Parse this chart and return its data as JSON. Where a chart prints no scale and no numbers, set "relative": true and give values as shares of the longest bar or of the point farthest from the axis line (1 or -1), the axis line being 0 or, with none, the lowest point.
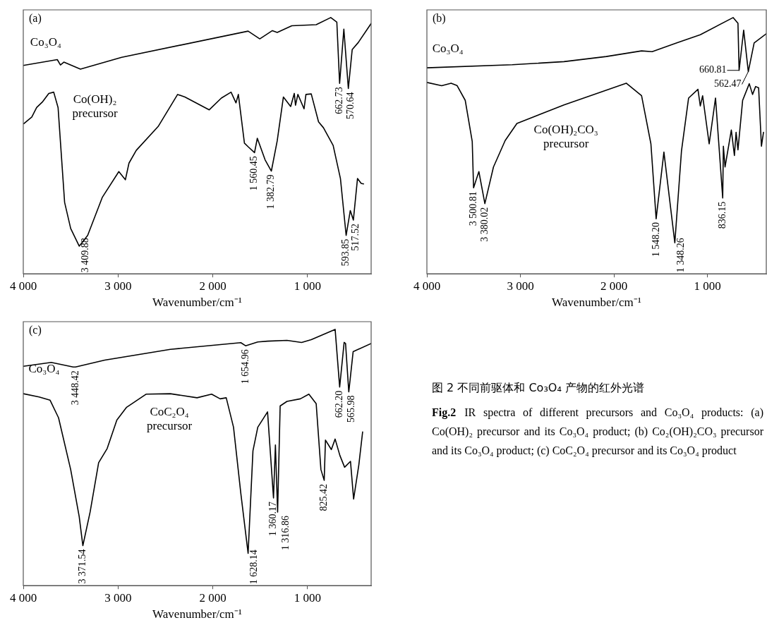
{
  "chart_data": [
    {
      "type": "line",
      "title": "(a)",
      "xlabel": "Wavenumber/cm⁻¹",
      "relative": true,
      "legend": false,
      "grid": false,
      "xlim": [
        4000,
        330
      ],
      "xticks": [
        {
          "value": 4000,
          "label": "4 000"
        },
        {
          "value": 3000,
          "label": "3 000"
        },
        {
          "value": 2000,
          "label": "2 000"
        },
        {
          "value": 1000,
          "label": "1 000"
        }
      ],
      "series": [
        {
          "name": "Co₃O₄",
          "color": "#000000",
          "x": [
            4000,
            3641,
            3608,
            3572,
            3397,
            2962,
            1628,
            1505,
            1372,
            1321,
            1167,
            910,
            756,
            692,
            662.73,
            618,
            570.64,
            530,
            465,
            330
          ],
          "values": [
            0.813,
            0.836,
            0.815,
            0.826,
            0.799,
            0.845,
            0.947,
            0.917,
            0.949,
            0.942,
            0.968,
            0.972,
            1,
            0.982,
            0.743,
            0.955,
            0.723,
            0.875,
            0.903,
            0.977
          ]
        },
        {
          "name": "Co(OH)₂ precursor",
          "color": "#000000",
          "x": [
            3995,
            3910,
            3859,
            3795,
            3731,
            3679,
            3633,
            3564,
            3500,
            3409.88,
            3321,
            3167,
            2992,
            2923,
            2885,
            2808,
            2577,
            2372,
            2295,
            2038,
            1910,
            1808,
            1756,
            1731,
            1667,
            1628,
            1560.45,
            1531,
            1449,
            1382.79,
            1321,
            1256,
            1179,
            1141,
            1128,
            1103,
            1038,
            1018,
            962,
            885,
            833,
            731,
            654,
            593.85,
            550,
            517.52,
            474,
            435,
            410
          ],
          "values": [
            0.586,
            0.612,
            0.649,
            0.672,
            0.704,
            0.709,
            0.649,
            0.279,
            0.177,
            0.108,
            0.15,
            0.298,
            0.399,
            0.367,
            0.432,
            0.482,
            0.575,
            0.7,
            0.69,
            0.64,
            0.686,
            0.709,
            0.667,
            0.7,
            0.51,
            0.496,
            0.473,
            0.529,
            0.445,
            0.401,
            0.519,
            0.69,
            0.653,
            0.704,
            0.658,
            0.7,
            0.644,
            0.7,
            0.702,
            0.593,
            0.57,
            0.501,
            0.372,
            0.15,
            0.247,
            0.21,
            0.372,
            0.353,
            0.351
          ]
        }
      ],
      "annotations": [
        {
          "text": "662.73",
          "x": 662.73,
          "y": 0.743
        },
        {
          "text": "570.64",
          "x": 570.64,
          "y": 0.723
        },
        {
          "text": "3 409.88",
          "x": 3409.88,
          "y": 0.108
        },
        {
          "text": "1 560.45",
          "x": 1560.45,
          "y": 0.473
        },
        {
          "text": "1 382.79",
          "x": 1382.79,
          "y": 0.401
        },
        {
          "text": "593.85",
          "x": 593.85,
          "y": 0.15
        },
        {
          "text": "517.52",
          "x": 517.52,
          "y": 0.21
        }
      ]
    },
    {
      "type": "line",
      "title": "(b)",
      "xlabel": "Wavenumber/cm⁻¹",
      "relative": true,
      "legend": false,
      "grid": false,
      "xlim": [
        4000,
        370
      ],
      "xticks": [
        {
          "value": 4000,
          "label": "4 000"
        },
        {
          "value": 3000,
          "label": "3 000"
        },
        {
          "value": 2000,
          "label": "2 000"
        },
        {
          "value": 1000,
          "label": "1 000"
        }
      ],
      "series": [
        {
          "name": "Co₃O₄",
          "color": "#000000",
          "x": [
            4000,
            3087,
            2534,
            2081,
            1704,
            1591,
            1327,
            1076,
            724,
            673,
            660.81,
            612,
            562.47,
            500,
            370
          ],
          "values": [
            0.804,
            0.816,
            0.828,
            0.848,
            0.87,
            0.867,
            0.901,
            0.933,
            1,
            0.978,
            0.794,
            0.951,
            0.789,
            0.901,
            0.937
          ]
        },
        {
          "name": "Co(OH)₂CO₃ precursor",
          "color": "#000000",
          "x": [
            4000,
            3842,
            3741,
            3678,
            3590,
            3515,
            3500.81,
            3444,
            3380.02,
            3288,
            3163,
            3037,
            2534,
            1868,
            1704,
            1604,
            1548.2,
            1465,
            1348.26,
            1277,
            1201,
            1101,
            1076,
            1051,
            981,
            913,
            836.15,
            829,
            811,
            744,
            711,
            693,
            673,
            623,
            552,
            517,
            484,
            452,
            422,
            400
          ],
          "values": [
            0.747,
            0.734,
            0.744,
            0.735,
            0.677,
            0.516,
            0.336,
            0.399,
            0.274,
            0.417,
            0.52,
            0.587,
            0.659,
            0.744,
            0.695,
            0.507,
            0.215,
            0.475,
            0.121,
            0.48,
            0.686,
            0.72,
            0.655,
            0.695,
            0.507,
            0.686,
            0.296,
            0.498,
            0.417,
            0.561,
            0.462,
            0.552,
            0.484,
            0.677,
            0.742,
            0.7,
            0.731,
            0.726,
            0.498,
            0.552
          ]
        }
      ],
      "annotations": [
        {
          "text": "660.81",
          "x": 660.81,
          "y": 0.794
        },
        {
          "text": "562.47",
          "x": 562.47,
          "y": 0.789
        },
        {
          "text": "3 500.81",
          "x": 3500.81,
          "y": 0.336
        },
        {
          "text": "3 380.02",
          "x": 3380.02,
          "y": 0.274
        },
        {
          "text": "1 548.20",
          "x": 1548.2,
          "y": 0.215
        },
        {
          "text": "1 348.26",
          "x": 1348.26,
          "y": 0.121
        },
        {
          "text": "836.15",
          "x": 836.15,
          "y": 0.296
        }
      ]
    },
    {
      "type": "line",
      "title": "(c)",
      "xlabel": "Wavenumber/cm⁻¹",
      "relative": true,
      "legend": false,
      "grid": false,
      "xlim": [
        4000,
        330
      ],
      "xticks": [
        {
          "value": 4000,
          "label": "4 000"
        },
        {
          "value": 3000,
          "label": "3 000"
        },
        {
          "value": 2000,
          "label": "2 000"
        },
        {
          "value": 1000,
          "label": "1 000"
        }
      ],
      "series": [
        {
          "name": "Co₃O₄",
          "color": "#000000",
          "x": [
            4000,
            3705,
            3474,
            3448.42,
            3141,
            2449,
            1705,
            1654.96,
            1526,
            1423,
            1218,
            1064,
            962,
            710,
            662.2,
            615,
            600,
            565.98,
            520,
            330
          ],
          "values": [
            0.856,
            0.871,
            0.853,
            0.853,
            0.88,
            0.922,
            0.948,
            0.936,
            0.951,
            0.954,
            0.957,
            0.949,
            0.96,
            1,
            0.775,
            0.949,
            0.945,
            0.756,
            0.913,
            0.945
          ]
        },
        {
          "name": "CoC₂O₄ precursor",
          "color": "#000000",
          "x": [
            4000,
            3833,
            3718,
            3628,
            3500,
            3410,
            3371.54,
            3295,
            3205,
            3115,
            3013,
            2910,
            2705,
            2449,
            2167,
            2013,
            1923,
            1859,
            1782,
            1705,
            1628.14,
            1577,
            1526,
            1423,
            1360.17,
            1340,
            1316.86,
            1290,
            1218,
            1077,
            987,
            910,
            860,
            825.42,
            812,
            750,
            710,
            660,
            610,
            548,
            515,
            460,
            420
          ],
          "values": [
            0.749,
            0.736,
            0.724,
            0.655,
            0.453,
            0.269,
            0.156,
            0.287,
            0.48,
            0.535,
            0.646,
            0.696,
            0.747,
            0.749,
            0.733,
            0.747,
            0.729,
            0.733,
            0.618,
            0.36,
            0.126,
            0.526,
            0.618,
            0.678,
            0.342,
            0.549,
            0.287,
            0.701,
            0.719,
            0.729,
            0.747,
            0.71,
            0.453,
            0.411,
            0.568,
            0.531,
            0.572,
            0.508,
            0.462,
            0.485,
            0.338,
            0.471,
            0.6
          ]
        }
      ],
      "annotations": [
        {
          "text": "3 448.42",
          "x": 3448.42,
          "y": 0.853
        },
        {
          "text": "1 654.96",
          "x": 1654.96,
          "y": 0.936
        },
        {
          "text": "662.20",
          "x": 662.2,
          "y": 0.775
        },
        {
          "text": "565.98",
          "x": 565.98,
          "y": 0.756
        },
        {
          "text": "3 371.54",
          "x": 3371.54,
          "y": 0.156
        },
        {
          "text": "1 628.14",
          "x": 1628.14,
          "y": 0.126
        },
        {
          "text": "1 360.17",
          "x": 1360.17,
          "y": 0.342
        },
        {
          "text": "1 316.86",
          "x": 1316.86,
          "y": 0.287
        },
        {
          "text": "825.42",
          "x": 825.42,
          "y": 0.411
        }
      ]
    },
    {
      "type": "other",
      "title": "图 2  不同前驱体和 Co₃O₄ 产物的红外光谱",
      "annotations": [
        "Fig.2",
        "IR spectra of different precursors and Co₃O₄ products: (a) Co(OH)₂ precursor and its Co₃O₄ product; (b) Co₂(OH)₂CO₃ precursor and its Co₃O₄ product; (c) CoC₂O₄ precursor and its Co₃O₄ product"
      ]
    }
  ]
}
